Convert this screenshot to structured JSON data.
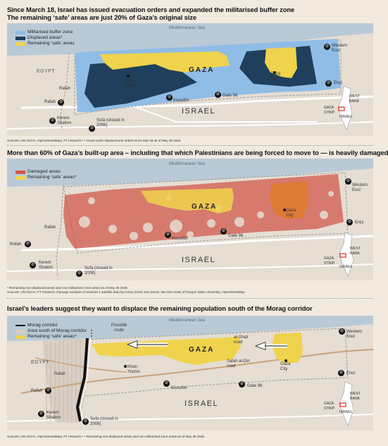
{
  "panel1": {
    "title_line1": "Since March 18, Israel has issued evacuation orders and expanded the militarised buffer zone",
    "title_line2": "The remaining ‘safe’ areas are just 20% of Gaza’s original size",
    "legend": [
      {
        "label": "Militarised buffer zone",
        "color": "#8fbde6"
      },
      {
        "label": "Displaced areas*",
        "color": "#1f3f5c"
      },
      {
        "label": "Remaining ‘safe’ areas",
        "color": "#f0d34c"
      }
    ],
    "source": "Sources: UN OCHA; OpenStreetMaps; FT research • * Areas under displacement orders since Mar 18 as of May 28 2025"
  },
  "panel2": {
    "title": "More than 60% of Gaza’s built-up area – including that which Palestinians are being forced to move to — is  heavily damaged",
    "legend": [
      {
        "label": "Damaged areas",
        "color": "#d0584c"
      },
      {
        "label": "Remaining ‘safe’ areas*",
        "color": "#f0d34c"
      }
    ],
    "note": "* Remaining non-displaced areas and non-militarised zone areas as of May 28 2025",
    "source": "Sources: UN OCHA; FT research; Damage analysis of Sentinel-1 satellite data by Corey Scher and Jamon Van Den Hoek of Oregon State University; OpenStreetMap"
  },
  "panel3": {
    "title": "Israel’s leaders suggest they want to displace the remaining population south of the Morag corridor",
    "legend": [
      {
        "label": "Morag corridor",
        "color": "#111111"
      },
      {
        "label": "Area south of Morag corridor",
        "color": "#d9cfc4"
      },
      {
        "label": "Remaining ‘safe’ areas*",
        "color": "#f0d34c"
      }
    ],
    "possible_route": "Possible route",
    "al_shati_road": "al-Shati road",
    "salah_road": "Salah al-Din road",
    "source": "Sources: UN OCHA; OpenStreetMaps; FT research • * Remaining non-displaced areas and non-militarised zone areas as of May 28 2025"
  },
  "places": {
    "sea": "Mediterranean Sea",
    "egypt": "EGYPT",
    "israel": "ISRAEL",
    "gaza": "GAZA",
    "gaza_city": "Gaza City",
    "khan_younis": "Khan Younis",
    "rafah": "Rafah",
    "western_erez": "Western Erez",
    "erez": "Erez",
    "kissufim": "Kissufim",
    "gate96": "Gate 96",
    "kerem_shalom": "Kerem Shalom",
    "sufa": "Sufa (closed in 2008)",
    "west_bank": "WEST BANK",
    "gaza_strip": "GAZA STRIP",
    "israel_small": "ISRAEL"
  },
  "colors": {
    "land": "#e6ddd3",
    "sea": "#b9cad6",
    "buffer": "#8fbde6",
    "displaced": "#1f3f5c",
    "safe": "#f0d34c",
    "damaged": "#d0584c",
    "road": "#ffffff",
    "border": "#999999"
  }
}
